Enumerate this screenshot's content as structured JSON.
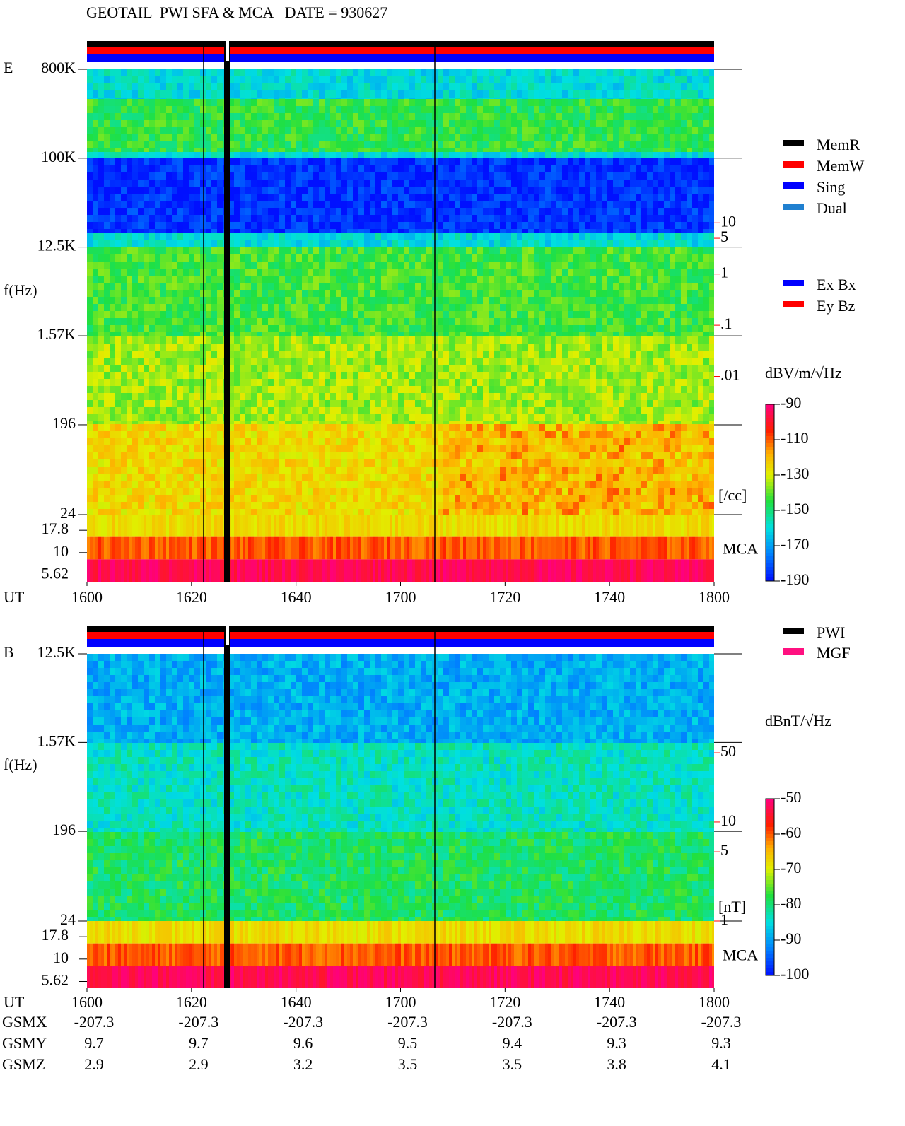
{
  "title": "GEOTAIL  PWI SFA & MCA   DATE = 930627",
  "chart_data": [
    {
      "type": "spectrogram",
      "panel_label": "E",
      "x_label": "UT",
      "y_label": "f(Hz)",
      "x_ticks": [
        "1600",
        "1620",
        "1640",
        "1700",
        "1720",
        "1740",
        "1800"
      ],
      "log_scale": true,
      "ylim": [
        24,
        800000
      ],
      "yticks": [
        {
          "value": 800000,
          "label": "800K"
        },
        {
          "value": 100000,
          "label": "100K"
        },
        {
          "value": 12500,
          "label": "12.5K"
        },
        {
          "value": 1570,
          "label": "1.57K"
        },
        196,
        24
      ],
      "mca_label": "MCA",
      "mca_channels": [
        17.8,
        10,
        5.62
      ],
      "y2lim": [
        2e-05,
        10000
      ],
      "y2_color": "#ff0000",
      "y2ticks": [
        10,
        5,
        1,
        {
          "value": 0.1,
          "label": ".1"
        },
        {
          "value": 0.01,
          "label": ".01"
        }
      ],
      "y2_label": "[/cc]",
      "colorbar": {
        "label": "dBV/m/√Hz",
        "lim": [
          -190,
          -90
        ],
        "ticks": [
          -90,
          -110,
          -130,
          -150,
          -170,
          -190
        ]
      },
      "legends": [
        [
          {
            "name": "MemR",
            "color": "#000000"
          },
          {
            "name": "MemW",
            "color": "#ff0000"
          },
          {
            "name": "Sing",
            "color": "#0000ff"
          },
          {
            "name": "Dual",
            "color": "#2080d0"
          }
        ],
        [
          {
            "name": "Ex Bx",
            "color": "#0000ff"
          },
          {
            "name": "Ey Bz",
            "color": "#ff0000"
          }
        ]
      ]
    },
    {
      "type": "spectrogram",
      "panel_label": "B",
      "x_label": "UT",
      "y_label": "f(Hz)",
      "x_ticks": [
        "1600",
        "1620",
        "1640",
        "1700",
        "1720",
        "1740",
        "1800"
      ],
      "log_scale": true,
      "ylim": [
        24,
        12500
      ],
      "yticks": [
        {
          "value": 12500,
          "label": "12.5K"
        },
        {
          "value": 1570,
          "label": "1.57K"
        },
        196,
        24
      ],
      "mca_label": "MCA",
      "mca_channels": [
        17.8,
        10,
        5.62
      ],
      "y2lim": [
        1,
        500
      ],
      "y2_color": "#ff0000",
      "y2ticks": [
        50,
        10,
        5,
        1
      ],
      "y2_label": "[nT]",
      "colorbar": {
        "label": "dBnT/√Hz",
        "lim": [
          -100,
          -50
        ],
        "ticks": [
          -50,
          -60,
          -70,
          -80,
          -90,
          -100
        ]
      },
      "legends": [
        [
          {
            "name": "PWI",
            "color": "#000000"
          },
          {
            "name": "MGF",
            "color": "#ff1080"
          }
        ]
      ]
    }
  ],
  "orbit": {
    "labels": [
      "GSMX",
      "GSMY",
      "GSMZ"
    ],
    "rows": [
      [
        -207.3,
        -207.3,
        -207.3,
        -207.3,
        -207.3,
        -207.3,
        -207.3
      ],
      [
        9.7,
        9.7,
        9.6,
        9.5,
        9.4,
        9.3,
        9.3
      ],
      [
        2.9,
        2.9,
        3.2,
        3.5,
        3.5,
        3.8,
        4.1
      ]
    ]
  }
}
